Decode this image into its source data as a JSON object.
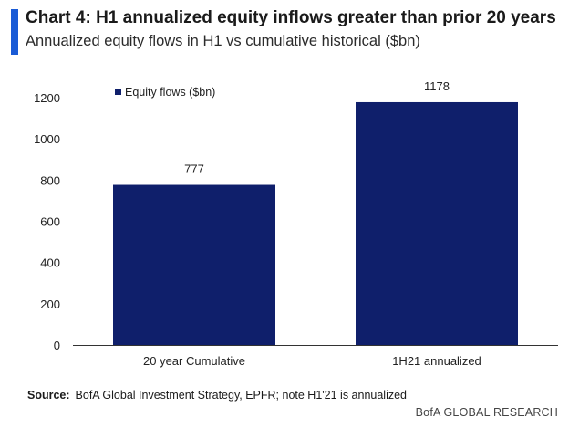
{
  "header": {
    "title": "Chart 4: H1 annualized equity inflows greater than prior 20 years",
    "subtitle": "Annualized equity flows in H1 vs cumulative historical ($bn)"
  },
  "footer": {
    "source_label": "Source:",
    "source_text": "BofA Global Investment Strategy, EPFR; note H1'21  is annualized",
    "brand": "BofA GLOBAL RESEARCH"
  },
  "colors": {
    "accent": "#1a5bd6",
    "bar": "#0f1f6b",
    "axis": "#333333"
  },
  "chart_data": {
    "type": "bar",
    "title": "Chart 4: H1 annualized equity inflows greater than prior 20 years",
    "subtitle": "Annualized equity flows in H1 vs cumulative historical ($bn)",
    "categories": [
      "20 year Cumulative",
      "1H21 annualized"
    ],
    "series": [
      {
        "name": "Equity flows ($bn)",
        "values": [
          777,
          1178
        ]
      }
    ],
    "data_labels": [
      "777",
      "1178"
    ],
    "ylim": [
      0,
      1200
    ],
    "yticks": [
      0,
      200,
      400,
      600,
      800,
      1000,
      1200
    ],
    "xlabel": "",
    "ylabel": "",
    "legend": "top-left",
    "grid": false
  }
}
